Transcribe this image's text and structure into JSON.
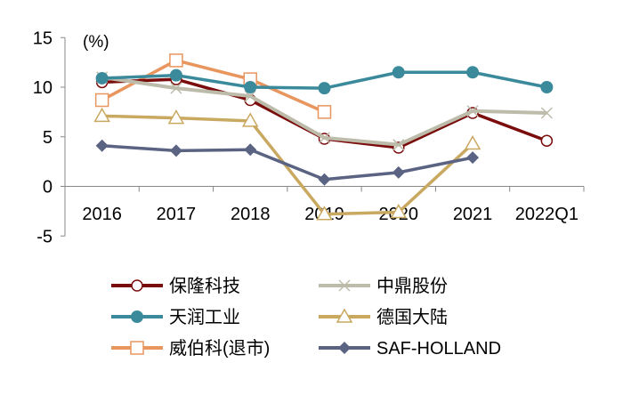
{
  "chart_data": {
    "type": "line",
    "ylabel": "(%)",
    "ylim": [
      -5,
      15
    ],
    "yticks": [
      15,
      10,
      5,
      0,
      -5
    ],
    "categories": [
      "2016",
      "2017",
      "2018",
      "2019",
      "2020",
      "2021",
      "2022Q1"
    ],
    "grid": false,
    "legend_position": "bottom",
    "series": [
      {
        "name": "保隆科技",
        "color": "#7a0c0c",
        "marker": "circle-open",
        "values": [
          10.5,
          10.8,
          8.7,
          4.8,
          3.9,
          7.4,
          4.6
        ]
      },
      {
        "name": "中鼎股份",
        "color": "#bdbcab",
        "marker": "x",
        "values": [
          11.0,
          9.9,
          9.1,
          4.9,
          4.2,
          7.6,
          7.4
        ]
      },
      {
        "name": "天润工业",
        "color": "#3a8a9c",
        "marker": "circle-filled",
        "values": [
          10.9,
          11.2,
          10.0,
          9.9,
          11.5,
          11.5,
          10.0
        ]
      },
      {
        "name": "德国大陆",
        "color": "#c9a860",
        "marker": "triangle-open",
        "values": [
          7.1,
          6.9,
          6.6,
          -2.8,
          -2.6,
          4.3,
          null
        ]
      },
      {
        "name": "威伯科(退市)",
        "color": "#e8955e",
        "marker": "square-open",
        "values": [
          8.7,
          12.7,
          10.8,
          7.5,
          null,
          null,
          null
        ]
      },
      {
        "name": "SAF-HOLLAND",
        "color": "#5b6383",
        "marker": "diamond-filled",
        "values": [
          4.1,
          3.6,
          3.7,
          0.7,
          1.4,
          2.9,
          null
        ]
      }
    ]
  }
}
